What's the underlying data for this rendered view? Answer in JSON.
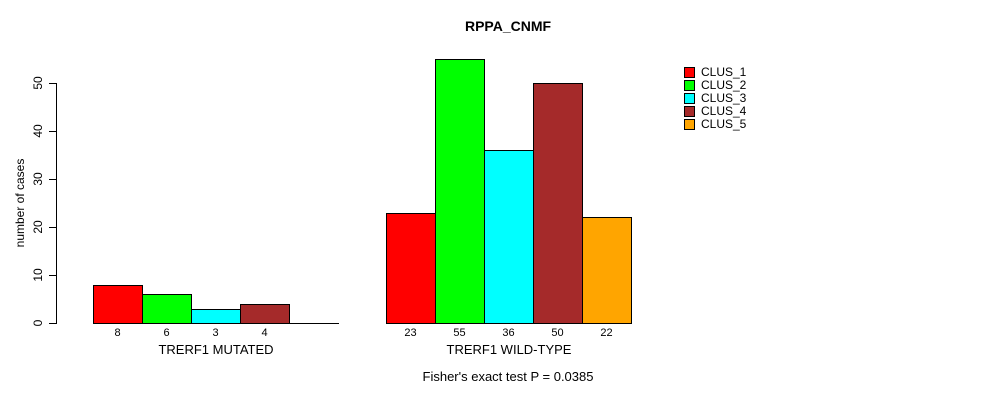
{
  "title": "RPPA_CNMF",
  "ylabel": "number of cases",
  "footer": "Fisher's exact test P = 0.0385",
  "legend": {
    "items": [
      {
        "label": "CLUS_1",
        "color": "#FF0000"
      },
      {
        "label": "CLUS_2",
        "color": "#00FF00"
      },
      {
        "label": "CLUS_3",
        "color": "#00FFFF"
      },
      {
        "label": "CLUS_4",
        "color": "#A52A2A"
      },
      {
        "label": "CLUS_5",
        "color": "#FFA500"
      }
    ]
  },
  "chart_data": {
    "type": "bar",
    "title": "RPPA_CNMF",
    "ylabel": "number of cases",
    "xlabel": "",
    "ylim": [
      0,
      55
    ],
    "yticks": [
      0,
      10,
      20,
      30,
      40,
      50
    ],
    "grid": false,
    "legend_position": "right",
    "legend_labels": [
      "CLUS_1",
      "CLUS_2",
      "CLUS_3",
      "CLUS_4",
      "CLUS_5"
    ],
    "colors": [
      "#FF0000",
      "#00FF00",
      "#00FFFF",
      "#A52A2A",
      "#FFA500"
    ],
    "categories": [
      "CLUS_1",
      "CLUS_2",
      "CLUS_3",
      "CLUS_4",
      "CLUS_5"
    ],
    "groups": [
      {
        "label": "TRERF1 MUTATED",
        "values": [
          8,
          6,
          3,
          4,
          0
        ],
        "bar_labels": [
          "8",
          "6",
          "3",
          "4",
          ""
        ]
      },
      {
        "label": "TRERF1 WILD-TYPE",
        "values": [
          23,
          55,
          36,
          50,
          22
        ],
        "bar_labels": [
          "23",
          "55",
          "36",
          "50",
          "22"
        ]
      }
    ],
    "annotation": "Fisher's exact test P = 0.0385"
  }
}
